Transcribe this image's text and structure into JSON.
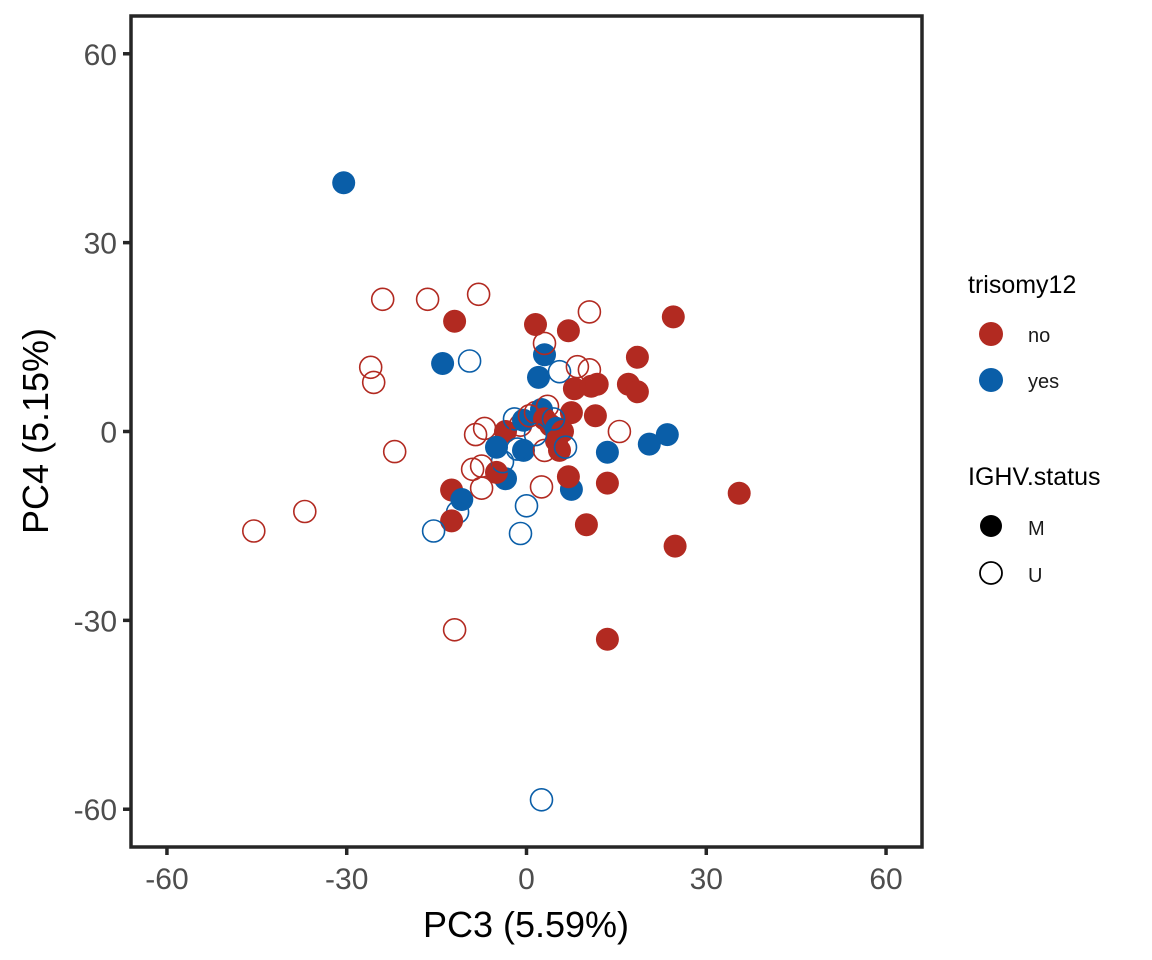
{
  "chart_data": {
    "type": "scatter",
    "xlabel": "PC3 (5.59%)",
    "ylabel": "PC4 (5.15%)",
    "xlim": [
      -66,
      66
    ],
    "ylim": [
      -66,
      66
    ],
    "xticks": [
      "-60",
      "-30",
      "0",
      "30",
      "60"
    ],
    "yticks": [
      "60",
      "30",
      "0",
      "-30",
      "-60"
    ],
    "grid": false,
    "legend_position": "right",
    "legends": [
      {
        "title": "trisomy12",
        "entries": [
          {
            "label": "no",
            "color": "#b22a21"
          },
          {
            "label": "yes",
            "color": "#0a5ea8"
          }
        ]
      },
      {
        "title": "IGHV.status",
        "entries": [
          {
            "label": "M",
            "fill": "filled"
          },
          {
            "label": "U",
            "fill": "open"
          }
        ]
      }
    ],
    "colors": {
      "no": "#b22a21",
      "yes": "#0a5ea8"
    },
    "points": [
      {
        "x": -30.5,
        "y": 39.5,
        "trisomy12": "yes",
        "ighv": "M"
      },
      {
        "x": -12.0,
        "y": 17.5,
        "trisomy12": "no",
        "ighv": "M"
      },
      {
        "x": -14.0,
        "y": 10.8,
        "trisomy12": "yes",
        "ighv": "M"
      },
      {
        "x": -9.5,
        "y": 11.2,
        "trisomy12": "yes",
        "ighv": "U"
      },
      {
        "x": -24.0,
        "y": 21.0,
        "trisomy12": "no",
        "ighv": "U"
      },
      {
        "x": -16.5,
        "y": 21.0,
        "trisomy12": "no",
        "ighv": "U"
      },
      {
        "x": -8.0,
        "y": 21.8,
        "trisomy12": "no",
        "ighv": "U"
      },
      {
        "x": -26.0,
        "y": 10.2,
        "trisomy12": "no",
        "ighv": "U"
      },
      {
        "x": -25.5,
        "y": 7.8,
        "trisomy12": "no",
        "ighv": "U"
      },
      {
        "x": -22.0,
        "y": -3.2,
        "trisomy12": "no",
        "ighv": "U"
      },
      {
        "x": -37.0,
        "y": -12.7,
        "trisomy12": "no",
        "ighv": "U"
      },
      {
        "x": -45.5,
        "y": -15.8,
        "trisomy12": "no",
        "ighv": "U"
      },
      {
        "x": -12.0,
        "y": -31.5,
        "trisomy12": "no",
        "ighv": "U"
      },
      {
        "x": 2.5,
        "y": -58.5,
        "trisomy12": "yes",
        "ighv": "U"
      },
      {
        "x": 1.5,
        "y": 17.0,
        "trisomy12": "no",
        "ighv": "M"
      },
      {
        "x": 7.0,
        "y": 16.0,
        "trisomy12": "no",
        "ighv": "M"
      },
      {
        "x": 10.5,
        "y": 19.0,
        "trisomy12": "no",
        "ighv": "U"
      },
      {
        "x": 24.5,
        "y": 18.2,
        "trisomy12": "no",
        "ighv": "M"
      },
      {
        "x": 18.5,
        "y": 11.8,
        "trisomy12": "no",
        "ighv": "M"
      },
      {
        "x": 3.0,
        "y": 12.2,
        "trisomy12": "yes",
        "ighv": "M"
      },
      {
        "x": 3.0,
        "y": 14.0,
        "trisomy12": "no",
        "ighv": "U"
      },
      {
        "x": 5.5,
        "y": 9.5,
        "trisomy12": "yes",
        "ighv": "U"
      },
      {
        "x": 2.0,
        "y": 8.6,
        "trisomy12": "yes",
        "ighv": "M"
      },
      {
        "x": 8.5,
        "y": 10.3,
        "trisomy12": "no",
        "ighv": "U"
      },
      {
        "x": 10.5,
        "y": 9.8,
        "trisomy12": "no",
        "ighv": "U"
      },
      {
        "x": 8.0,
        "y": 6.8,
        "trisomy12": "no",
        "ighv": "M"
      },
      {
        "x": 10.8,
        "y": 7.2,
        "trisomy12": "no",
        "ighv": "M"
      },
      {
        "x": 11.8,
        "y": 7.5,
        "trisomy12": "no",
        "ighv": "M"
      },
      {
        "x": 17.0,
        "y": 7.5,
        "trisomy12": "no",
        "ighv": "M"
      },
      {
        "x": 18.5,
        "y": 6.3,
        "trisomy12": "no",
        "ighv": "M"
      },
      {
        "x": 11.5,
        "y": 2.5,
        "trisomy12": "no",
        "ighv": "M"
      },
      {
        "x": 7.5,
        "y": 3.0,
        "trisomy12": "no",
        "ighv": "M"
      },
      {
        "x": 15.5,
        "y": 0.0,
        "trisomy12": "no",
        "ighv": "U"
      },
      {
        "x": 23.5,
        "y": -0.5,
        "trisomy12": "yes",
        "ighv": "M"
      },
      {
        "x": 20.5,
        "y": -2.0,
        "trisomy12": "yes",
        "ighv": "M"
      },
      {
        "x": 13.5,
        "y": -3.3,
        "trisomy12": "yes",
        "ighv": "M"
      },
      {
        "x": 35.5,
        "y": -9.8,
        "trisomy12": "no",
        "ighv": "M"
      },
      {
        "x": 24.8,
        "y": -18.2,
        "trisomy12": "no",
        "ighv": "M"
      },
      {
        "x": 13.5,
        "y": -8.2,
        "trisomy12": "no",
        "ighv": "M"
      },
      {
        "x": 10.0,
        "y": -14.8,
        "trisomy12": "no",
        "ighv": "M"
      },
      {
        "x": 13.5,
        "y": -33.0,
        "trisomy12": "no",
        "ighv": "M"
      },
      {
        "x": 7.5,
        "y": -9.2,
        "trisomy12": "yes",
        "ighv": "M"
      },
      {
        "x": 7.0,
        "y": -7.2,
        "trisomy12": "no",
        "ighv": "M"
      },
      {
        "x": 2.5,
        "y": -8.8,
        "trisomy12": "no",
        "ighv": "U"
      },
      {
        "x": 0.0,
        "y": -11.8,
        "trisomy12": "yes",
        "ighv": "U"
      },
      {
        "x": -1.0,
        "y": -16.2,
        "trisomy12": "yes",
        "ighv": "U"
      },
      {
        "x": -12.5,
        "y": -9.3,
        "trisomy12": "no",
        "ighv": "M"
      },
      {
        "x": -10.8,
        "y": -10.8,
        "trisomy12": "yes",
        "ighv": "M"
      },
      {
        "x": -11.5,
        "y": -12.8,
        "trisomy12": "yes",
        "ighv": "U"
      },
      {
        "x": -12.5,
        "y": -14.2,
        "trisomy12": "no",
        "ighv": "M"
      },
      {
        "x": -15.5,
        "y": -15.8,
        "trisomy12": "yes",
        "ighv": "U"
      },
      {
        "x": -7.5,
        "y": -9.0,
        "trisomy12": "no",
        "ighv": "U"
      },
      {
        "x": -3.5,
        "y": -7.5,
        "trisomy12": "yes",
        "ighv": "M"
      },
      {
        "x": -5.0,
        "y": -6.5,
        "trisomy12": "no",
        "ighv": "M"
      },
      {
        "x": -4.0,
        "y": -4.8,
        "trisomy12": "yes",
        "ighv": "U"
      },
      {
        "x": -7.5,
        "y": -5.5,
        "trisomy12": "no",
        "ighv": "U"
      },
      {
        "x": -9.0,
        "y": -6.0,
        "trisomy12": "no",
        "ighv": "U"
      },
      {
        "x": -8.5,
        "y": -0.5,
        "trisomy12": "no",
        "ighv": "U"
      },
      {
        "x": -7.0,
        "y": 0.5,
        "trisomy12": "no",
        "ighv": "U"
      },
      {
        "x": -3.5,
        "y": 0.0,
        "trisomy12": "no",
        "ighv": "M"
      },
      {
        "x": -2.0,
        "y": 2.0,
        "trisomy12": "yes",
        "ighv": "U"
      },
      {
        "x": -1.0,
        "y": 1.0,
        "trisomy12": "no",
        "ighv": "U"
      },
      {
        "x": -0.5,
        "y": 1.8,
        "trisomy12": "yes",
        "ighv": "M"
      },
      {
        "x": -5.0,
        "y": -2.5,
        "trisomy12": "yes",
        "ighv": "M"
      },
      {
        "x": -0.5,
        "y": -3.0,
        "trisomy12": "yes",
        "ighv": "M"
      },
      {
        "x": -1.5,
        "y": -2.8,
        "trisomy12": "yes",
        "ighv": "U"
      },
      {
        "x": 1.5,
        "y": 3.0,
        "trisomy12": "no",
        "ighv": "U"
      },
      {
        "x": 2.5,
        "y": 3.5,
        "trisomy12": "yes",
        "ighv": "M"
      },
      {
        "x": 3.0,
        "y": 2.0,
        "trisomy12": "no",
        "ighv": "M"
      },
      {
        "x": 4.0,
        "y": 1.0,
        "trisomy12": "no",
        "ighv": "M"
      },
      {
        "x": 5.0,
        "y": 0.5,
        "trisomy12": "yes",
        "ighv": "M"
      },
      {
        "x": 3.5,
        "y": 4.0,
        "trisomy12": "no",
        "ighv": "U"
      },
      {
        "x": 6.0,
        "y": 0.0,
        "trisomy12": "no",
        "ighv": "M"
      },
      {
        "x": 5.0,
        "y": -1.5,
        "trisomy12": "no",
        "ighv": "M"
      },
      {
        "x": 5.5,
        "y": -3.0,
        "trisomy12": "no",
        "ighv": "M"
      },
      {
        "x": 3.0,
        "y": -3.0,
        "trisomy12": "no",
        "ighv": "U"
      },
      {
        "x": 6.5,
        "y": -2.5,
        "trisomy12": "yes",
        "ighv": "U"
      },
      {
        "x": 1.5,
        "y": -0.5,
        "trisomy12": "yes",
        "ighv": "U"
      },
      {
        "x": 0.5,
        "y": 2.5,
        "trisomy12": "no",
        "ighv": "U"
      },
      {
        "x": 4.5,
        "y": 2.0,
        "trisomy12": "yes",
        "ighv": "U"
      }
    ]
  }
}
